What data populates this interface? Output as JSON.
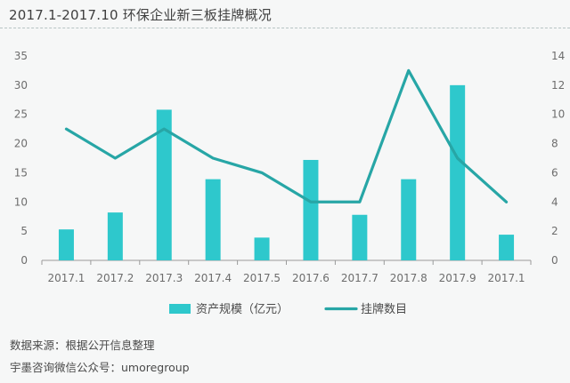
{
  "title": "2017.1-2017.10 环保企业新三板挂牌概况",
  "source_line1": "数据来源：根据公开信息整理",
  "source_line2": "宇墨咨询微信公众号：umoregroup",
  "colors": {
    "bar": "#2ec8cc",
    "line": "#27a6a6",
    "axis": "#9a9a9a"
  },
  "chart_data": {
    "type": "bar+line",
    "categories": [
      "2017.1",
      "2017.2",
      "2017.3",
      "2017.4",
      "2017.5",
      "2017.6",
      "2017.7",
      "2017.8",
      "2017.9",
      "2017.1"
    ],
    "series": [
      {
        "name": "资产规模（亿元）",
        "type": "bar",
        "axis": "left",
        "values": [
          5.3,
          8.2,
          25.8,
          13.9,
          3.9,
          17.2,
          7.8,
          13.9,
          30.0,
          4.4
        ]
      },
      {
        "name": "挂牌数目",
        "type": "line",
        "axis": "right",
        "values": [
          9,
          7,
          9,
          7,
          6,
          4,
          4,
          13,
          7,
          4
        ]
      }
    ],
    "y_left": {
      "min": 0,
      "max": 35,
      "ticks": [
        0,
        5,
        10,
        15,
        20,
        25,
        30,
        35
      ]
    },
    "y_right": {
      "min": 0,
      "max": 14,
      "ticks": [
        0,
        2,
        4,
        6,
        8,
        10,
        12,
        14
      ]
    },
    "legend_position": "bottom",
    "grid": false
  }
}
